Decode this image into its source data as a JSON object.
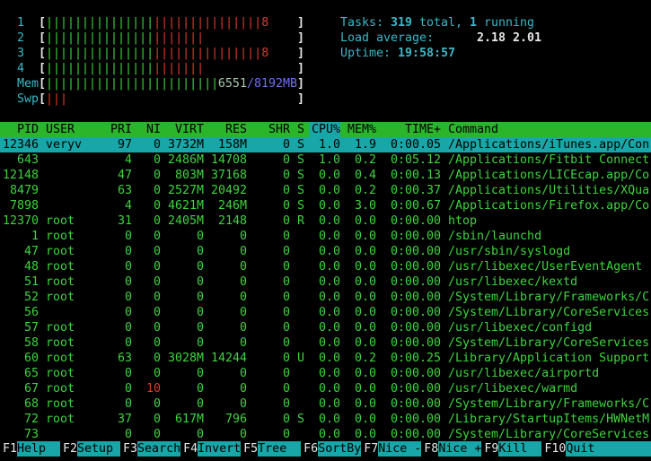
{
  "meters": {
    "bracket_open": "[",
    "bracket_close": "]",
    "cpus": [
      {
        "label": "1",
        "green": "|||||||||||||||",
        "red": "|||||||||||||||",
        "value": "8"
      },
      {
        "label": "2",
        "green": "|||||||||||||||",
        "red": "|||||||"
      },
      {
        "label": "3",
        "green": "|||||||||||||||",
        "red": "|||||||||||||||",
        "value": "8"
      },
      {
        "label": "4",
        "green": "|||||||||||||||",
        "red": "|||||||"
      }
    ],
    "mem": {
      "label": "Mem",
      "green": "||||||||||||||||||||||||",
      "used": "6551",
      "total": "/8192MB"
    },
    "swp": {
      "label": "Swp",
      "red": "|||"
    }
  },
  "summary": {
    "tasks": {
      "label": "Tasks:",
      "total": "319",
      "total_text": "total,",
      "running": "1",
      "running_text": "running"
    },
    "load": {
      "label": "Load average:",
      "values": [
        "2.18",
        "2.01"
      ]
    },
    "uptime": {
      "label": "Uptime:",
      "value": "19:58:57"
    }
  },
  "table": {
    "columns": [
      "PID",
      "USER",
      "PRI",
      "NI",
      "VIRT",
      "RES",
      "SHR",
      "S",
      "CPU%",
      "MEM%",
      "TIME+",
      "Command"
    ],
    "rows": [
      [
        "12346",
        "veryv",
        "97",
        "0",
        "3732M",
        "158M",
        "0",
        "S",
        "1.0",
        "1.9",
        "0:00.05",
        "/Applications/iTunes.app/Con"
      ],
      [
        "643",
        null,
        "4",
        "0",
        "2486M",
        "14708",
        "0",
        "S",
        "1.0",
        "0.2",
        "0:05.12",
        "/Applications/Fitbit Connect"
      ],
      [
        "12148",
        null,
        "47",
        "0",
        "803M",
        "37168",
        "0",
        "S",
        "0.0",
        "0.4",
        "0:00.13",
        "/Applications/LICEcap.app/Co"
      ],
      [
        "8479",
        null,
        "63",
        "0",
        "2527M",
        "20492",
        "0",
        "S",
        "0.0",
        "0.2",
        "0:00.37",
        "/Applications/Utilities/XQua"
      ],
      [
        "7898",
        null,
        "4",
        "0",
        "4621M",
        "246M",
        "0",
        "S",
        "0.0",
        "3.0",
        "0:00.67",
        "/Applications/Firefox.app/Co"
      ],
      [
        "12370",
        "root",
        "31",
        "0",
        "2405M",
        "2148",
        "0",
        "R",
        "0.0",
        "0.0",
        "0:00.00",
        "htop"
      ],
      [
        "1",
        "root",
        "0",
        "0",
        "0",
        "0",
        "0",
        null,
        "0.0",
        "0.0",
        "0:00.00",
        "/sbin/launchd"
      ],
      [
        "47",
        "root",
        "0",
        "0",
        "0",
        "0",
        "0",
        null,
        "0.0",
        "0.0",
        "0:00.00",
        "/usr/sbin/syslogd"
      ],
      [
        "48",
        "root",
        "0",
        "0",
        "0",
        "0",
        "0",
        null,
        "0.0",
        "0.0",
        "0:00.00",
        "/usr/libexec/UserEventAgent"
      ],
      [
        "51",
        "root",
        "0",
        "0",
        "0",
        "0",
        "0",
        null,
        "0.0",
        "0.0",
        "0:00.00",
        "/usr/libexec/kextd"
      ],
      [
        "52",
        "root",
        "0",
        "0",
        "0",
        "0",
        "0",
        null,
        "0.0",
        "0.0",
        "0:00.00",
        "/System/Library/Frameworks/C"
      ],
      [
        "56",
        null,
        "0",
        "0",
        "0",
        "0",
        "0",
        null,
        "0.0",
        "0.0",
        "0:00.00",
        "/System/Library/CoreServices"
      ],
      [
        "57",
        "root",
        "0",
        "0",
        "0",
        "0",
        "0",
        null,
        "0.0",
        "0.0",
        "0:00.00",
        "/usr/libexec/configd"
      ],
      [
        "58",
        "root",
        "0",
        "0",
        "0",
        "0",
        "0",
        null,
        "0.0",
        "0.0",
        "0:00.00",
        "/System/Library/CoreServices"
      ],
      [
        "60",
        "root",
        "63",
        "0",
        "3028M",
        "14244",
        "0",
        "U",
        "0.0",
        "0.2",
        "0:00.25",
        "/Library/Application Support"
      ],
      [
        "65",
        "root",
        "0",
        "0",
        "0",
        "0",
        "0",
        null,
        "0.0",
        "0.0",
        "0:00.00",
        "/usr/libexec/airportd"
      ],
      [
        "67",
        "root",
        "0",
        "10",
        "0",
        "0",
        "0",
        null,
        "0.0",
        "0.0",
        "0:00.00",
        "/usr/libexec/warmd"
      ],
      [
        "68",
        "root",
        "0",
        "0",
        "0",
        "0",
        "0",
        null,
        "0.0",
        "0.0",
        "0:00.00",
        "/System/Library/Frameworks/C"
      ],
      [
        "72",
        "root",
        "37",
        "0",
        "617M",
        "796",
        "0",
        "S",
        "0.0",
        "0.0",
        "0:00.00",
        "/Library/StartupItems/HWNetM"
      ],
      [
        "73",
        null,
        "0",
        "0",
        "0",
        "0",
        "0",
        null,
        "0.0",
        "0.0",
        "0:00.00",
        "/System/Library/CoreServices"
      ]
    ]
  },
  "function_keys": [
    {
      "key": "F1",
      "label": "Help"
    },
    {
      "key": "F2",
      "label": "Setup"
    },
    {
      "key": "F3",
      "label": "Search"
    },
    {
      "key": "F4",
      "label": "Invert"
    },
    {
      "key": "F5",
      "label": "Tree"
    },
    {
      "key": "F6",
      "label": "SortBy"
    },
    {
      "key": "F7",
      "label": "Nice -"
    },
    {
      "key": "F8",
      "label": "Nice +"
    },
    {
      "key": "F9",
      "label": "Kill"
    },
    {
      "key": "F10",
      "label": "Quit"
    }
  ]
}
